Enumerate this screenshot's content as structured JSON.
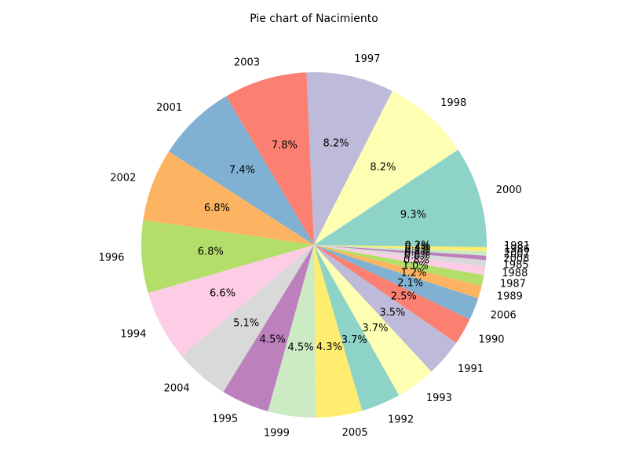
{
  "chart_data": {
    "type": "pie",
    "title": "Pie chart of Nacimiento",
    "start_angle_deg": 0,
    "direction": "counterclockwise",
    "slices": [
      {
        "label": "2000",
        "percent": 9.3,
        "pct_text": "9.3%",
        "color": "#8dd3c7"
      },
      {
        "label": "1998",
        "percent": 8.2,
        "pct_text": "8.2%",
        "color": "#ffffb3"
      },
      {
        "label": "1997",
        "percent": 8.2,
        "pct_text": "8.2%",
        "color": "#bebada"
      },
      {
        "label": "2003",
        "percent": 7.8,
        "pct_text": "7.8%",
        "color": "#fb8072"
      },
      {
        "label": "2001",
        "percent": 7.4,
        "pct_text": "7.4%",
        "color": "#80b1d3"
      },
      {
        "label": "2002",
        "percent": 6.8,
        "pct_text": "6.8%",
        "color": "#fdb462"
      },
      {
        "label": "1996",
        "percent": 6.8,
        "pct_text": "6.8%",
        "color": "#b3de69"
      },
      {
        "label": "1994",
        "percent": 6.6,
        "pct_text": "6.6%",
        "color": "#fccde5"
      },
      {
        "label": "2004",
        "percent": 5.1,
        "pct_text": "5.1%",
        "color": "#d9d9d9"
      },
      {
        "label": "1995",
        "percent": 4.5,
        "pct_text": "4.5%",
        "color": "#bc80bd"
      },
      {
        "label": "1999",
        "percent": 4.5,
        "pct_text": "4.5%",
        "color": "#ccebc5"
      },
      {
        "label": "2005",
        "percent": 4.3,
        "pct_text": "4.3%",
        "color": "#ffed6f"
      },
      {
        "label": "1992",
        "percent": 3.7,
        "pct_text": "3.7%",
        "color": "#8dd3c7"
      },
      {
        "label": "1993",
        "percent": 3.7,
        "pct_text": "3.7%",
        "color": "#ffffb3"
      },
      {
        "label": "1991",
        "percent": 3.5,
        "pct_text": "3.5%",
        "color": "#bebada"
      },
      {
        "label": "1990",
        "percent": 2.5,
        "pct_text": "2.5%",
        "color": "#fb8072"
      },
      {
        "label": "2006",
        "percent": 2.1,
        "pct_text": "2.1%",
        "color": "#80b1d3"
      },
      {
        "label": "1989",
        "percent": 1.2,
        "pct_text": "1.2%",
        "color": "#fdb462"
      },
      {
        "label": "1987",
        "percent": 1.0,
        "pct_text": "1.0%",
        "color": "#b3de69"
      },
      {
        "label": "1988",
        "percent": 0.8,
        "pct_text": "0.8%",
        "color": "#fccde5"
      },
      {
        "label": "1985",
        "percent": 0.6,
        "pct_text": "0.6%",
        "color": "#d9d9d9"
      },
      {
        "label": "2008",
        "percent": 0.4,
        "pct_text": "0.4%",
        "color": "#bc80bd"
      },
      {
        "label": "2007",
        "percent": 0.4,
        "pct_text": "0.4%",
        "color": "#ccebc5"
      },
      {
        "label": "1986",
        "percent": 0.4,
        "pct_text": "0.4%",
        "color": "#ffed6f"
      },
      {
        "label": "1981",
        "percent": 0.2,
        "pct_text": "0.2%",
        "color": "#8dd3c7"
      }
    ]
  }
}
